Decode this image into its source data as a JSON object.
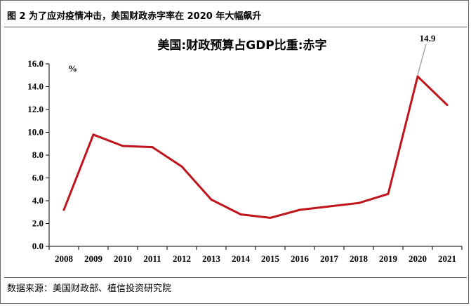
{
  "figure": {
    "title": "图 2  为了应对疫情冲击，美国财政赤字率在 2020 年大幅飙升",
    "source": "数据来源：美国财政部、植信投资研究院"
  },
  "colors": {
    "series": "#c0141c",
    "axis": "#000000",
    "callout_line": "#aaaaaa"
  },
  "chart_data": {
    "type": "line",
    "title": "美国:财政预算占GDP比重:赤字",
    "ylabel": "%",
    "xlabel": "",
    "x": [
      "2008",
      "2009",
      "2010",
      "2011",
      "2012",
      "2013",
      "2014",
      "2015",
      "2016",
      "2017",
      "2018",
      "2019",
      "2020",
      "2021"
    ],
    "yticks": [
      "0.0",
      "2.0",
      "4.0",
      "6.0",
      "8.0",
      "10.0",
      "12.0",
      "14.0",
      "16.0"
    ],
    "ylim": [
      0,
      16
    ],
    "grid": false,
    "legend": "none",
    "series": [
      {
        "values": [
          3.2,
          9.8,
          8.8,
          8.7,
          7.0,
          4.1,
          2.8,
          2.5,
          3.2,
          3.5,
          3.8,
          4.6,
          14.9,
          12.4
        ]
      }
    ],
    "annotations": [
      {
        "x": "2020",
        "text": "14.9"
      }
    ]
  }
}
